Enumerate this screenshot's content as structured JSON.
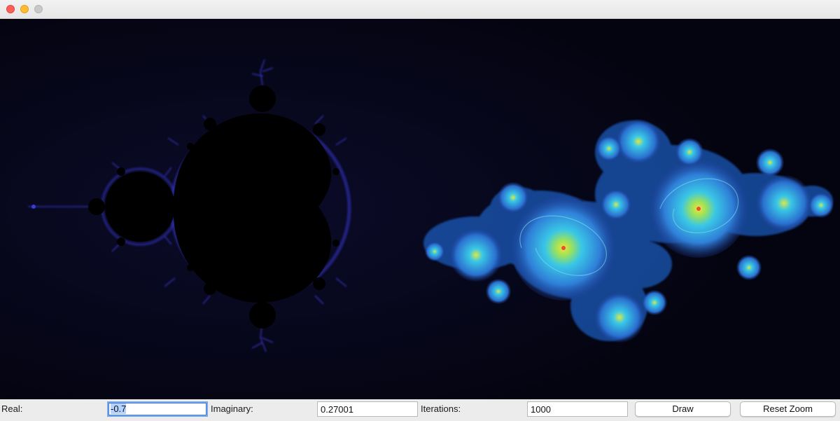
{
  "window": {
    "traffic_lights": [
      "close",
      "minimize",
      "zoom"
    ]
  },
  "fractals": {
    "left": "mandelbrot-set",
    "right": "julia-set"
  },
  "controls": {
    "real_label": "Real:",
    "real_value": "-0.7",
    "imaginary_label": "Imaginary:",
    "imaginary_value": "0.27001",
    "iterations_label": "Iterations:",
    "iterations_value": "1000",
    "draw_label": "Draw",
    "reset_zoom_label": "Reset Zoom"
  },
  "colors": {
    "background": "#050510",
    "fractal_edge": "#3a3ad8",
    "julia_blue": "#2f7fd8",
    "julia_cyan": "#39c7e6",
    "julia_core": "#f2e23a"
  }
}
